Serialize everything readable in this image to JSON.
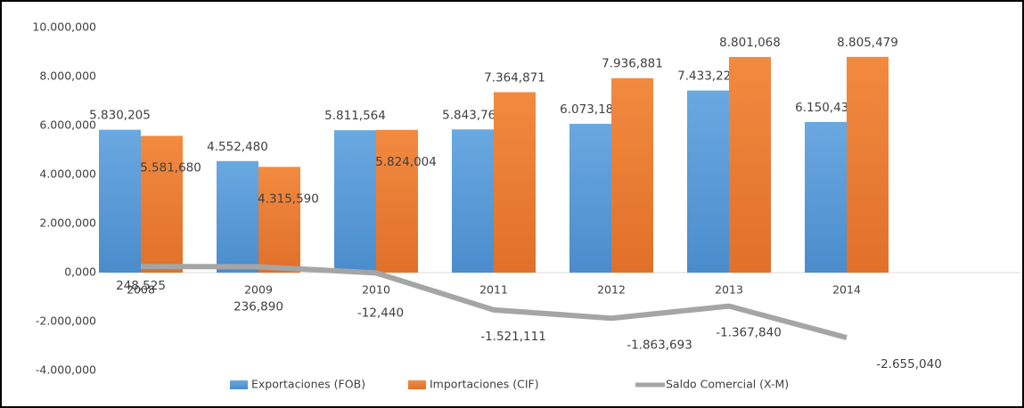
{
  "chart_data": {
    "type": "bar",
    "categories": [
      "2008",
      "2009",
      "2010",
      "2011",
      "2012",
      "2013",
      "2014"
    ],
    "series": [
      {
        "name": "Exportaciones (FOB)",
        "color": "#5b9bd5",
        "type": "bar",
        "values": [
          5830.205,
          4552.48,
          5811.564,
          5843.76,
          6073.188,
          7433.228,
          6150.439
        ],
        "value_labels": [
          "5.830,205",
          "4.552,480",
          "5.811,564",
          "5.843,760",
          "6.073,188",
          "7.433,228",
          "6.150,439"
        ]
      },
      {
        "name": "Importaciones (CIF)",
        "color": "#ed7d31",
        "type": "bar",
        "values": [
          5581.68,
          4315.59,
          5824.004,
          7364.871,
          7936.881,
          8801.068,
          8805.479
        ],
        "value_labels": [
          "5.581,680",
          "4.315,590",
          "5.824,004",
          "7.364,871",
          "7.936,881",
          "8.801,068",
          "8.805,479"
        ]
      },
      {
        "name": "Saldo Comercial (X-M)",
        "color": "#a5a5a5",
        "type": "line",
        "values": [
          248.525,
          236.89,
          -12.44,
          -1521.111,
          -1863.693,
          -1367.84,
          -2655.04
        ],
        "value_labels": [
          "248,525",
          "236,890",
          "-12,440",
          "-1.521,111",
          "-1.863,693",
          "-1.367,840",
          "-2.655,040"
        ]
      }
    ],
    "ylim": [
      -4000,
      10000
    ],
    "yticks": [
      {
        "value": -4000,
        "label": "-4.000,000"
      },
      {
        "value": -2000,
        "label": "-2.000,000"
      },
      {
        "value": 0,
        "label": "0,000"
      },
      {
        "value": 2000,
        "label": "2.000,000"
      },
      {
        "value": 4000,
        "label": "4.000,000"
      },
      {
        "value": 6000,
        "label": "6.000,000"
      },
      {
        "value": 8000,
        "label": "8.000,000"
      },
      {
        "value": 10000,
        "label": "10.000,000"
      }
    ],
    "grid": false,
    "legend": "bottom"
  }
}
